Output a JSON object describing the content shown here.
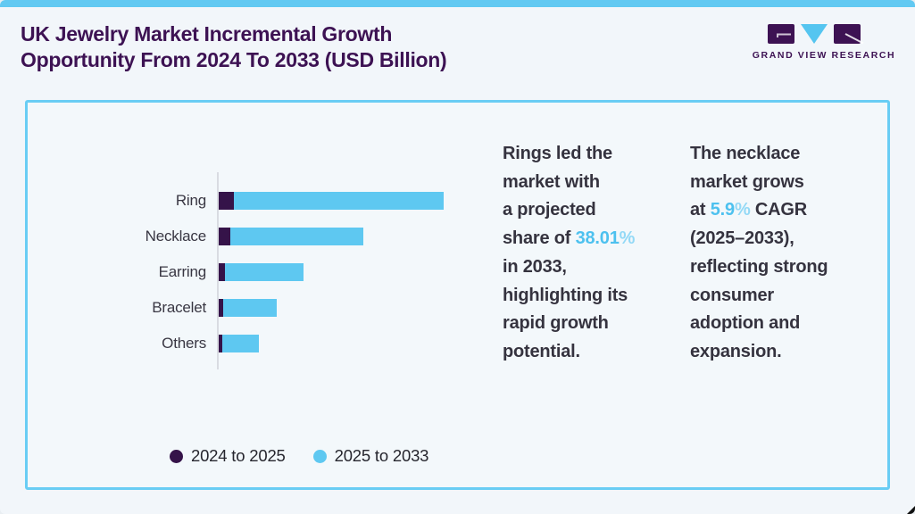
{
  "header": {
    "title_line1": "UK Jewelry Market Incremental Growth",
    "title_line2": "Opportunity From 2024 To 2033 (USD Billion)"
  },
  "brand": {
    "name": "GRAND VIEW RESEARCH"
  },
  "colors": {
    "accent_blue": "#5ec8f1",
    "dark_purple": "#351349",
    "title_purple": "#3d1253",
    "body_text": "#35333f",
    "highlight_blue": "#4dc1ef",
    "percent_blue": "#93d9f6",
    "card_border": "#69cdf4",
    "top_strip": "#62c9f2",
    "axis_line": "#d9dce2",
    "page_bg": "#f2f6fa"
  },
  "chart_data": {
    "type": "bar",
    "orientation": "horizontal",
    "stacked": true,
    "grid": false,
    "legend_position": "bottom",
    "title": "UK Jewelry Market Incremental Growth Opportunity From 2024 To 2033 (USD Billion)",
    "value_axis_note": "axis unlabeled; values estimated from bar lengths as percent of longest bar (Ring)",
    "categories": [
      "Ring",
      "Necklace",
      "Earring",
      "Bracelet",
      "Others"
    ],
    "series": [
      {
        "name": "2024 to 2025",
        "color": "#351349",
        "values": [
          6.7,
          5.2,
          2.8,
          2.0,
          1.4
        ]
      },
      {
        "name": "2025 to 2033",
        "color": "#5ec8f1",
        "values": [
          93.3,
          59.1,
          34.9,
          23.8,
          16.3
        ]
      }
    ]
  },
  "callouts": [
    {
      "id": "rings-insight",
      "lines": [
        [
          {
            "t": "Rings led the"
          }
        ],
        [
          {
            "t": "market with"
          }
        ],
        [
          {
            "t": "a projected"
          }
        ],
        [
          {
            "t": "share of "
          },
          {
            "t": "38.01",
            "s": "hl"
          },
          {
            "t": "%",
            "s": "pct"
          }
        ],
        [
          {
            "t": "in 2033,"
          }
        ],
        [
          {
            "t": "highlighting its"
          }
        ],
        [
          {
            "t": "rapid growth"
          }
        ],
        [
          {
            "t": "potential."
          }
        ]
      ]
    },
    {
      "id": "necklace-insight",
      "lines": [
        [
          {
            "t": "The necklace"
          }
        ],
        [
          {
            "t": "market grows"
          }
        ],
        [
          {
            "t": "at "
          },
          {
            "t": "5.9",
            "s": "hl"
          },
          {
            "t": "%",
            "s": "pct"
          },
          {
            "t": " CAGR"
          }
        ],
        [
          {
            "t": "(2025–2033),"
          }
        ],
        [
          {
            "t": "reflecting strong"
          }
        ],
        [
          {
            "t": "consumer"
          }
        ],
        [
          {
            "t": "adoption and"
          }
        ],
        [
          {
            "t": "expansion."
          }
        ]
      ]
    }
  ]
}
